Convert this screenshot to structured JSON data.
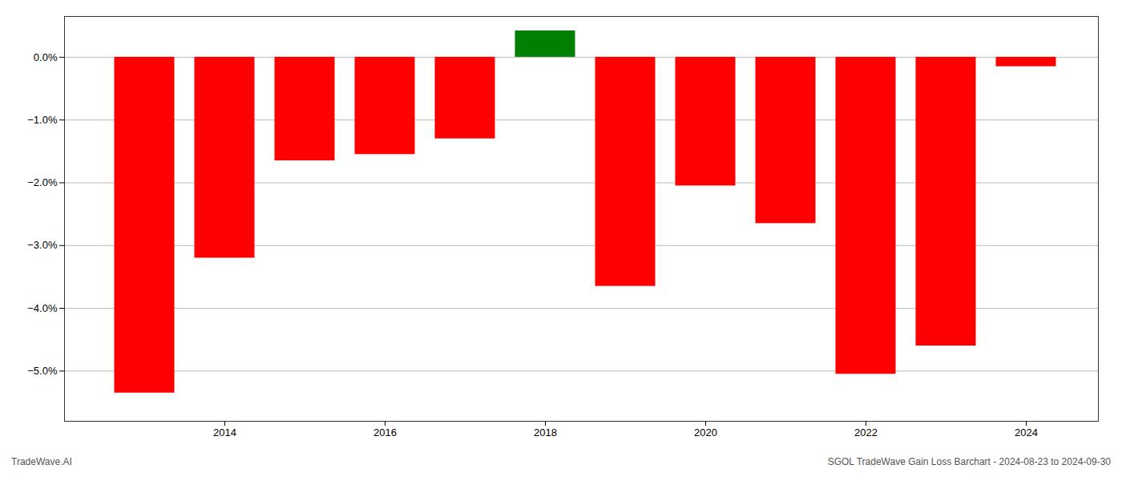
{
  "chart_data": {
    "type": "bar",
    "x": [
      2013,
      2014,
      2015,
      2016,
      2017,
      2018,
      2019,
      2020,
      2021,
      2022,
      2023,
      2024
    ],
    "values": [
      -5.35,
      -3.2,
      -1.65,
      -1.55,
      -1.3,
      0.42,
      -3.65,
      -2.05,
      -2.65,
      -5.05,
      -4.6,
      -0.15
    ],
    "colors": [
      "#ff0000",
      "#ff0000",
      "#ff0000",
      "#ff0000",
      "#ff0000",
      "#008000",
      "#ff0000",
      "#ff0000",
      "#ff0000",
      "#ff0000",
      "#ff0000",
      "#ff0000"
    ],
    "xlim": [
      2012,
      2024.9
    ],
    "xticks": [
      2014,
      2016,
      2018,
      2020,
      2022,
      2024
    ],
    "ylim": [
      -5.8,
      0.65
    ],
    "yticks": [
      {
        "value": 0.0,
        "label": "0.0%"
      },
      {
        "value": -1.0,
        "label": "−1.0%"
      },
      {
        "value": -2.0,
        "label": "−2.0%"
      },
      {
        "value": -3.0,
        "label": "−3.0%"
      },
      {
        "value": -4.0,
        "label": "−4.0%"
      },
      {
        "value": -5.0,
        "label": "−5.0%"
      }
    ],
    "grid": true,
    "annotations": [
      "TradeWave.AI",
      "SGOL TradeWave Gain Loss Barchart - 2024-08-23 to 2024-09-30"
    ]
  }
}
